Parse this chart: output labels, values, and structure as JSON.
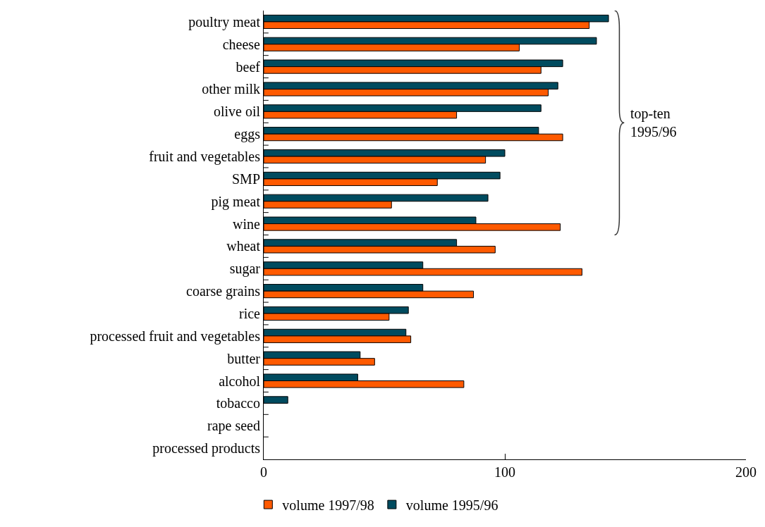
{
  "chart_data": {
    "type": "bar",
    "orientation": "horizontal",
    "categories": [
      "poultry meat",
      "cheese",
      "beef",
      "other milk",
      "olive oil",
      "eggs",
      "fruit and vegetables",
      "SMP",
      "pig meat",
      "wine",
      "wheat",
      "sugar",
      "coarse grains",
      "rice",
      "processed fruit and vegetables",
      "butter",
      "alcohol",
      "tobacco",
      "rape seed",
      "processed products"
    ],
    "series": [
      {
        "name": "volume 1997/98",
        "color": "#ff5a00",
        "values": [
          135,
          106,
          115,
          118,
          80,
          124,
          92,
          72,
          53,
          123,
          96,
          132,
          87,
          52,
          61,
          46,
          83,
          null,
          null,
          null
        ]
      },
      {
        "name": "volume 1995/96",
        "color": "#004b5f",
        "values": [
          143,
          138,
          124,
          122,
          115,
          114,
          100,
          98,
          93,
          88,
          80,
          66,
          66,
          60,
          59,
          40,
          39,
          10,
          null,
          null
        ]
      }
    ],
    "xlim": [
      0,
      200
    ],
    "xticks": [
      0,
      100,
      200
    ],
    "legend": "bottom left",
    "annotations": [
      "top-ten\n1995/96"
    ]
  }
}
